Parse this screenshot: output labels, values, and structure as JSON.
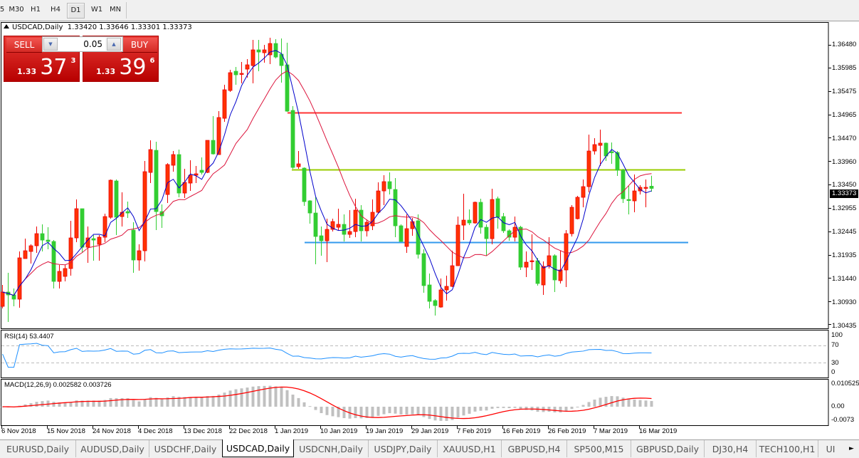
{
  "toolbar": {
    "timeframes": [
      {
        "label": "5",
        "active": false
      },
      {
        "label": "M30",
        "active": false
      },
      {
        "label": "H1",
        "active": false
      },
      {
        "label": "H4",
        "active": false
      },
      {
        "label": "D1",
        "active": true
      },
      {
        "label": "W1",
        "active": false
      },
      {
        "label": "MN",
        "active": false
      }
    ]
  },
  "chart_header": {
    "symbol": "USDCAD,Daily",
    "open": "1.33420",
    "high": "1.33646",
    "low": "1.33301",
    "close": "1.33373"
  },
  "trade_panel": {
    "sell_label": "SELL",
    "buy_label": "BUY",
    "lot": "0.05",
    "sell_prefix": "1.33",
    "sell_big": "37",
    "sell_pip": "3",
    "buy_prefix": "1.33",
    "buy_big": "39",
    "buy_pip": "6"
  },
  "price_axis": {
    "ticks": [
      "1.36480",
      "1.35985",
      "1.35475",
      "1.34965",
      "1.34470",
      "1.33960",
      "1.33450",
      "1.32955",
      "1.32445",
      "1.31935",
      "1.31440",
      "1.30930",
      "1.30435"
    ],
    "current_price": "1.33373"
  },
  "rsi": {
    "label": "RSI(14) 53.4407",
    "levels": [
      "100",
      "70",
      "30",
      "0"
    ]
  },
  "macd": {
    "label": "MACD(12,26,9) 0.002582 0.003726",
    "levels": [
      "0.010525",
      "0.00",
      "-0.0073"
    ]
  },
  "date_axis": [
    "6 Nov 2018",
    "15 Nov 2018",
    "24 Nov 2018",
    "4 Dec 2018",
    "13 Dec 2018",
    "22 Dec 2018",
    "1 Jan 2019",
    "10 Jan 2019",
    "19 Jan 2019",
    "29 Jan 2019",
    "7 Feb 2019",
    "16 Feb 2019",
    "26 Feb 2019",
    "7 Mar 2019",
    "16 Mar 2019"
  ],
  "colors": {
    "bull_candle": "#ff3300",
    "bear_candle": "#32cd32",
    "fast_ma": "#0000cc",
    "slow_ma": "#dc143c",
    "rsi_line": "#1e90ff",
    "macd_hist": "#c0c0c0",
    "macd_signal": "#ff0000",
    "resistance_line": "#ff3333",
    "middle_line": "#99cc00",
    "support_line": "#3399ee"
  },
  "chart_data": {
    "type": "candlestick",
    "symbol": "USDCAD",
    "timeframe": "Daily",
    "ylim": [
      1.30435,
      1.3648
    ],
    "candles_ohlc": [
      [
        1.3082,
        1.31283,
        1.30774,
        1.31129
      ],
      [
        1.31129,
        1.31545,
        1.30481,
        1.31067
      ],
      [
        1.31067,
        1.31206,
        1.3082,
        1.30975
      ],
      [
        1.30975,
        1.32008,
        1.3079,
        1.31869
      ],
      [
        1.31854,
        1.32285,
        1.31854,
        1.32023
      ],
      [
        1.32008,
        1.32162,
        1.31746,
        1.32131
      ],
      [
        1.32131,
        1.32547,
        1.31977,
        1.32393
      ],
      [
        1.32393,
        1.32594,
        1.32008,
        1.32254
      ],
      [
        1.32254,
        1.32532,
        1.32054,
        1.32224
      ],
      [
        1.32224,
        1.32254,
        1.31206,
        1.3136
      ],
      [
        1.3136,
        1.31715,
        1.31206,
        1.31576
      ],
      [
        1.31468,
        1.31715,
        1.3136,
        1.31638
      ],
      [
        1.31638,
        1.32671,
        1.31483,
        1.32301
      ],
      [
        1.32301,
        1.33133,
        1.32208,
        1.32933
      ],
      [
        1.32933,
        1.32933,
        1.31977,
        1.321
      ],
      [
        1.321,
        1.32547,
        1.31761,
        1.32301
      ],
      [
        1.32285,
        1.32362,
        1.31807,
        1.32254
      ],
      [
        1.32162,
        1.32362,
        1.31807,
        1.32316
      ],
      [
        1.32316,
        1.32825,
        1.32208,
        1.32763
      ],
      [
        1.32748,
        1.33565,
        1.32717,
        1.3355
      ],
      [
        1.33534,
        1.33565,
        1.32362,
        1.32748
      ],
      [
        1.32763,
        1.33288,
        1.32547,
        1.32856
      ],
      [
        1.32871,
        1.33087,
        1.32732,
        1.3284
      ],
      [
        1.3247,
        1.3264,
        1.31545,
        1.31823
      ],
      [
        1.31823,
        1.32162,
        1.31591,
        1.32023
      ],
      [
        1.32023,
        1.33966,
        1.31792,
        1.33735
      ],
      [
        1.33719,
        1.34413,
        1.33488,
        1.34213
      ],
      [
        1.34197,
        1.34382,
        1.3247,
        1.32871
      ],
      [
        1.32871,
        1.33026,
        1.32517,
        1.32779
      ],
      [
        1.33241,
        1.33919,
        1.33056,
        1.33889
      ],
      [
        1.33874,
        1.34182,
        1.33735,
        1.34105
      ],
      [
        1.34105,
        1.34213,
        1.3318,
        1.33272
      ],
      [
        1.33272,
        1.33796,
        1.33164,
        1.33503
      ],
      [
        1.33488,
        1.33981,
        1.33318,
        1.33658
      ],
      [
        1.33658,
        1.33858,
        1.33488,
        1.33689
      ],
      [
        1.33766,
        1.34043,
        1.33673,
        1.33719
      ],
      [
        1.33719,
        1.34413,
        1.33705,
        1.34413
      ],
      [
        1.34413,
        1.34938,
        1.34105,
        1.3412
      ],
      [
        1.34105,
        1.35045,
        1.34105,
        1.34907
      ],
      [
        1.34891,
        1.35616,
        1.34814,
        1.35508
      ],
      [
        1.35493,
        1.3594,
        1.35462,
        1.35878
      ],
      [
        1.35909,
        1.36002,
        1.35616,
        1.35832
      ],
      [
        1.35847,
        1.36109,
        1.35647,
        1.35863
      ],
      [
        1.35955,
        1.36171,
        1.3577,
        1.36048
      ],
      [
        1.36032,
        1.36587,
        1.35647,
        1.36372
      ],
      [
        1.36372,
        1.36587,
        1.35909,
        1.36325
      ],
      [
        1.3631,
        1.3648,
        1.36094,
        1.36372
      ],
      [
        1.36264,
        1.36634,
        1.36063,
        1.3651
      ],
      [
        1.3651,
        1.36603,
        1.36187,
        1.36217
      ],
      [
        1.36279,
        1.36618,
        1.35662,
        1.36032
      ],
      [
        1.36048,
        1.36526,
        1.3503,
        1.35045
      ],
      [
        1.35061,
        1.35153,
        1.33796,
        1.33827
      ],
      [
        1.33843,
        1.34182,
        1.33796,
        1.33904
      ],
      [
        1.33812,
        1.33827,
        1.32995,
        1.33087
      ],
      [
        1.33103,
        1.33118,
        1.32609,
        1.3284
      ],
      [
        1.3284,
        1.3318,
        1.3173,
        1.32332
      ],
      [
        1.32347,
        1.32547,
        1.31915,
        1.32239
      ],
      [
        1.32239,
        1.32717,
        1.31776,
        1.32486
      ],
      [
        1.32486,
        1.32717,
        1.32439,
        1.32655
      ],
      [
        1.32532,
        1.32933,
        1.3247,
        1.32594
      ],
      [
        1.32594,
        1.3281,
        1.32224,
        1.32378
      ],
      [
        1.32378,
        1.32902,
        1.32301,
        1.32439
      ],
      [
        1.32439,
        1.33149,
        1.32316,
        1.32902
      ],
      [
        1.32902,
        1.3301,
        1.32224,
        1.32455
      ],
      [
        1.32455,
        1.32702,
        1.32332,
        1.3264
      ],
      [
        1.32563,
        1.33133,
        1.3247,
        1.32856
      ],
      [
        1.32856,
        1.33503,
        1.32825,
        1.33318
      ],
      [
        1.33318,
        1.33658,
        1.3301,
        1.33519
      ],
      [
        1.33519,
        1.33719,
        1.33241,
        1.33365
      ],
      [
        1.33349,
        1.33596,
        1.32316,
        1.32563
      ],
      [
        1.32563,
        1.32594,
        1.32224,
        1.32224
      ],
      [
        1.32116,
        1.3281,
        1.31977,
        1.32501
      ],
      [
        1.32501,
        1.32732,
        1.32347,
        1.32655
      ],
      [
        1.32671,
        1.3281,
        1.31854,
        1.31946
      ],
      [
        1.31961,
        1.32054,
        1.31113,
        1.31268
      ],
      [
        1.31283,
        1.3153,
        1.30774,
        1.30928
      ],
      [
        1.30944,
        1.30975,
        1.3062,
        1.30836
      ],
      [
        1.30805,
        1.31422,
        1.3079,
        1.31175
      ],
      [
        1.31175,
        1.31483,
        1.30944,
        1.31252
      ],
      [
        1.31252,
        1.32023,
        1.31237,
        1.31699
      ],
      [
        1.31699,
        1.32763,
        1.31699,
        1.32578
      ],
      [
        1.32578,
        1.33257,
        1.32254,
        1.32686
      ],
      [
        1.32686,
        1.32918,
        1.32578,
        1.32625
      ],
      [
        1.32625,
        1.33087,
        1.32609,
        1.33072
      ],
      [
        1.33072,
        1.33149,
        1.32393,
        1.32532
      ],
      [
        1.32532,
        1.32594,
        1.31915,
        1.32285
      ],
      [
        1.32285,
        1.33365,
        1.32162,
        1.33133
      ],
      [
        1.33149,
        1.33195,
        1.32501,
        1.32748
      ],
      [
        1.32763,
        1.3284,
        1.32409,
        1.32455
      ],
      [
        1.32455,
        1.32486,
        1.32239,
        1.32316
      ],
      [
        1.32316,
        1.32763,
        1.32224,
        1.32532
      ],
      [
        1.32532,
        1.32563,
        1.31607,
        1.31668
      ],
      [
        1.31668,
        1.32008,
        1.31453,
        1.31776
      ],
      [
        1.31792,
        1.32378,
        1.31607,
        1.31807
      ],
      [
        1.31807,
        1.31869,
        1.31268,
        1.31314
      ],
      [
        1.31283,
        1.31792,
        1.31067,
        1.31684
      ],
      [
        1.31699,
        1.32316,
        1.31638,
        1.31915
      ],
      [
        1.31915,
        1.31946,
        1.31129,
        1.31391
      ],
      [
        1.31376,
        1.32023,
        1.31314,
        1.31607
      ],
      [
        1.31607,
        1.3247,
        1.31237,
        1.32393
      ],
      [
        1.32393,
        1.3301,
        1.32332,
        1.32964
      ],
      [
        1.32717,
        1.3321,
        1.32702,
        1.3318
      ],
      [
        1.3318,
        1.33565,
        1.32964,
        1.33411
      ],
      [
        1.33411,
        1.34537,
        1.33288,
        1.34182
      ],
      [
        1.34182,
        1.3446,
        1.34105,
        1.34321
      ],
      [
        1.34305,
        1.34645,
        1.33858,
        1.34352
      ],
      [
        1.34352,
        1.34367,
        1.33966,
        1.34074
      ],
      [
        1.34167,
        1.34367,
        1.33904,
        1.34151
      ],
      [
        1.34151,
        1.34182,
        1.33642,
        1.33766
      ],
      [
        1.33766,
        1.33796,
        1.33056,
        1.33149
      ],
      [
        1.33133,
        1.33426,
        1.3281,
        1.33118
      ],
      [
        1.33103,
        1.33673,
        1.32856,
        1.33318
      ],
      [
        1.33318,
        1.33442,
        1.33241,
        1.33396
      ],
      [
        1.3338,
        1.33565,
        1.32964,
        1.33396
      ],
      [
        1.3342,
        1.33646,
        1.33301,
        1.33373
      ]
    ],
    "horizontal_lines": [
      {
        "price": 1.3502,
        "color": "#ff3333"
      },
      {
        "price": 1.3378,
        "color": "#99cc00"
      },
      {
        "price": 1.3221,
        "color": "#3399ee"
      }
    ],
    "rsi_range": [
      0,
      100
    ],
    "macd_range": [
      -0.0073,
      0.010525
    ]
  },
  "tabs": [
    {
      "label": "EURUSD,Daily",
      "active": false
    },
    {
      "label": "AUDUSD,Daily",
      "active": false
    },
    {
      "label": "USDCHF,Daily",
      "active": false
    },
    {
      "label": "USDCAD,Daily",
      "active": true
    },
    {
      "label": "USDCNH,Daily",
      "active": false
    },
    {
      "label": "USDJPY,Daily",
      "active": false
    },
    {
      "label": "XAUUSD,H1",
      "active": false
    },
    {
      "label": "GBPUSD,H4",
      "active": false
    },
    {
      "label": "SP500,M15",
      "active": false
    },
    {
      "label": "GBPUSD,Daily",
      "active": false
    },
    {
      "label": "DJ30,H4",
      "active": false
    },
    {
      "label": "TECH100,H1",
      "active": false
    },
    {
      "label": "UI",
      "active": false
    }
  ]
}
